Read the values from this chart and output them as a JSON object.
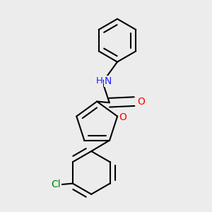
{
  "background_color": "#ececec",
  "line_color": "#000000",
  "bond_lw": 1.5,
  "dbo": 0.022,
  "atom_colors": {
    "O": "#ff0000",
    "N": "#2020ff",
    "Cl": "#008000",
    "C": "#000000"
  },
  "font_size": 10
}
